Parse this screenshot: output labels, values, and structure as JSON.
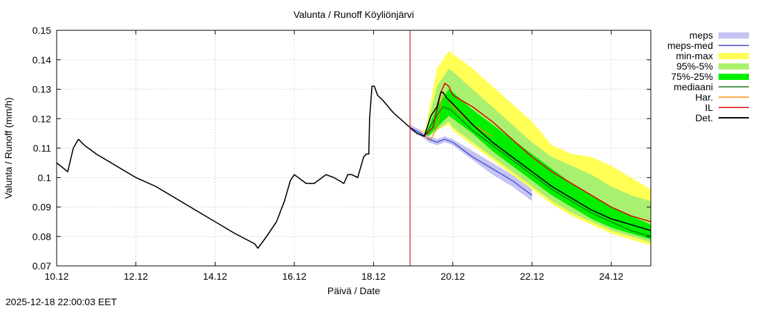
{
  "chart_data": {
    "type": "line",
    "title": "Valunta / Runoff  Köyliönjärvi",
    "xlabel": "Päivä / Date",
    "ylabel": "Valunta / Runoff (mm/h)",
    "x_unit": "days since 10.12 00:00",
    "xlim": [
      0,
      15
    ],
    "ylim": [
      0.07,
      0.15
    ],
    "x_ticks": [
      {
        "x": 0,
        "label": "10.12"
      },
      {
        "x": 2,
        "label": "12.12"
      },
      {
        "x": 4,
        "label": "14.12"
      },
      {
        "x": 6,
        "label": "16.12"
      },
      {
        "x": 8,
        "label": "18.12"
      },
      {
        "x": 10,
        "label": "20.12"
      },
      {
        "x": 12,
        "label": "22.12"
      },
      {
        "x": 14,
        "label": "24.12"
      }
    ],
    "y_ticks": [
      {
        "y": 0.07,
        "label": "0.07"
      },
      {
        "y": 0.08,
        "label": "0.08"
      },
      {
        "y": 0.09,
        "label": "0.09"
      },
      {
        "y": 0.1,
        "label": "0.1"
      },
      {
        "y": 0.11,
        "label": "0.11"
      },
      {
        "y": 0.12,
        "label": "0.12"
      },
      {
        "y": 0.13,
        "label": "0.13"
      },
      {
        "y": 0.14,
        "label": "0.14"
      },
      {
        "y": 0.15,
        "label": "0.15"
      }
    ],
    "grid": true,
    "forecast_start_x": 8.92,
    "legend_position": "right, outside plot",
    "colors": {
      "meps": "#c4c4f4",
      "meps_med": "#4444cc",
      "min_max": "#ffff55",
      "p95_5": "#aaf070",
      "p75_25": "#00ee00",
      "mediaani": "#117711",
      "har": "#ff8800",
      "il": "#dd0000",
      "det": "#000000",
      "now_line": "#cc0000",
      "grid": "#b4b4b4"
    },
    "legend": [
      {
        "key": "meps",
        "label": "meps",
        "style": "band"
      },
      {
        "key": "meps_med",
        "label": "meps-med",
        "style": "line"
      },
      {
        "key": "min_max",
        "label": "min-max",
        "style": "band"
      },
      {
        "key": "p95_5",
        "label": "95%-5%",
        "style": "band"
      },
      {
        "key": "p75_25",
        "label": "75%-25%",
        "style": "band"
      },
      {
        "key": "mediaani",
        "label": "mediaani",
        "style": "line"
      },
      {
        "key": "har",
        "label": "Har.",
        "style": "line"
      },
      {
        "key": "il",
        "label": "IL",
        "style": "line"
      },
      {
        "key": "det",
        "label": "Det.",
        "style": "line"
      }
    ],
    "series": {
      "det": {
        "x": [
          0,
          0.28,
          0.42,
          0.55,
          0.7,
          1.0,
          1.5,
          2.0,
          2.5,
          3.0,
          3.5,
          4.0,
          4.5,
          5.0,
          5.08,
          5.3,
          5.55,
          5.75,
          5.9,
          6.0,
          6.1,
          6.3,
          6.5,
          6.8,
          7.0,
          7.25,
          7.35,
          7.45,
          7.6,
          7.75,
          7.82,
          7.88,
          7.9,
          7.96,
          8.02,
          8.1,
          8.25,
          8.5,
          8.92,
          9.1,
          9.28,
          9.45,
          9.6,
          9.7,
          9.75,
          9.85,
          10.0,
          10.5,
          11.0,
          11.5,
          12.0,
          12.5,
          13.0,
          13.5,
          14.0,
          14.5,
          15.0
        ],
        "y": [
          0.105,
          0.102,
          0.11,
          0.113,
          0.111,
          0.108,
          0.104,
          0.1,
          0.097,
          0.093,
          0.089,
          0.085,
          0.081,
          0.0775,
          0.076,
          0.08,
          0.085,
          0.092,
          0.099,
          0.101,
          0.1,
          0.098,
          0.098,
          0.101,
          0.1,
          0.098,
          0.101,
          0.101,
          0.1,
          0.107,
          0.108,
          0.108,
          0.12,
          0.131,
          0.131,
          0.128,
          0.126,
          0.122,
          0.117,
          0.115,
          0.114,
          0.121,
          0.124,
          0.129,
          0.129,
          0.127,
          0.125,
          0.118,
          0.112,
          0.107,
          0.102,
          0.097,
          0.093,
          0.089,
          0.086,
          0.084,
          0.082
        ]
      },
      "mediaani": {
        "x": [
          9.28,
          9.5,
          9.75,
          9.95,
          10.5,
          11.0,
          11.5,
          12.0,
          12.5,
          13.0,
          13.5,
          14.0,
          14.5,
          15.0
        ],
        "y": [
          0.114,
          0.119,
          0.124,
          0.123,
          0.116,
          0.111,
          0.106,
          0.101,
          0.096,
          0.092,
          0.088,
          0.085,
          0.082,
          0.08
        ]
      },
      "il": {
        "x": [
          9.28,
          9.5,
          9.7,
          9.8,
          9.9,
          10.0,
          10.5,
          11.0,
          11.5,
          12.0,
          12.5,
          13.0,
          13.5,
          14.0,
          14.5,
          15.0
        ],
        "y": [
          0.114,
          0.117,
          0.129,
          0.132,
          0.131,
          0.128,
          0.124,
          0.119,
          0.113,
          0.107,
          0.102,
          0.098,
          0.094,
          0.09,
          0.087,
          0.085
        ]
      },
      "har": {
        "x": [
          9.28,
          9.45,
          9.6,
          9.7,
          9.75,
          9.8,
          10.0,
          10.5,
          11.0
        ],
        "y": [
          0.114,
          0.113,
          0.117,
          0.124,
          0.129,
          0.128,
          0.124,
          0.118,
          0.114
        ]
      },
      "meps_med": {
        "x": [
          8.92,
          9.2,
          9.4,
          9.6,
          9.8,
          10.0,
          10.5,
          11.0,
          11.5,
          12.0
        ],
        "y": [
          0.117,
          0.115,
          0.113,
          0.112,
          0.113,
          0.112,
          0.107,
          0.103,
          0.099,
          0.094
        ]
      }
    },
    "bands": {
      "min_max": {
        "x": [
          8.92,
          9.3,
          9.6,
          9.9,
          10.0,
          10.5,
          11.0,
          11.5,
          12.0,
          12.5,
          13.0,
          13.5,
          14.0,
          14.5,
          15.0
        ],
        "upper": [
          0.117,
          0.116,
          0.137,
          0.143,
          0.142,
          0.137,
          0.131,
          0.125,
          0.119,
          0.111,
          0.108,
          0.107,
          0.104,
          0.1,
          0.096
        ],
        "lower": [
          0.117,
          0.113,
          0.116,
          0.118,
          0.116,
          0.111,
          0.106,
          0.101,
          0.096,
          0.091,
          0.087,
          0.084,
          0.081,
          0.079,
          0.077
        ]
      },
      "p95_5": {
        "x": [
          8.92,
          9.3,
          9.6,
          9.9,
          10.0,
          10.5,
          11.0,
          11.5,
          12.0,
          12.5,
          13.0,
          13.5,
          14.0,
          14.5,
          15.0
        ],
        "upper": [
          0.117,
          0.115,
          0.131,
          0.137,
          0.136,
          0.13,
          0.124,
          0.118,
          0.112,
          0.107,
          0.104,
          0.101,
          0.097,
          0.094,
          0.092
        ],
        "lower": [
          0.117,
          0.113,
          0.116,
          0.119,
          0.117,
          0.112,
          0.107,
          0.102,
          0.097,
          0.092,
          0.088,
          0.085,
          0.082,
          0.08,
          0.078
        ]
      },
      "p75_25": {
        "x": [
          8.92,
          9.3,
          9.6,
          9.9,
          10.0,
          10.5,
          11.0,
          11.5,
          12.0,
          12.5,
          13.0,
          13.5,
          14.0,
          14.5,
          15.0
        ],
        "upper": [
          0.117,
          0.114,
          0.124,
          0.13,
          0.129,
          0.123,
          0.118,
          0.113,
          0.108,
          0.103,
          0.098,
          0.094,
          0.09,
          0.087,
          0.084
        ],
        "lower": [
          0.117,
          0.113,
          0.117,
          0.121,
          0.12,
          0.115,
          0.109,
          0.104,
          0.099,
          0.094,
          0.09,
          0.086,
          0.083,
          0.081,
          0.079
        ]
      },
      "meps": {
        "x": [
          8.92,
          9.2,
          9.4,
          9.6,
          9.8,
          10.0,
          10.5,
          11.0,
          11.5,
          12.0
        ],
        "upper": [
          0.118,
          0.116,
          0.114,
          0.113,
          0.114,
          0.113,
          0.109,
          0.105,
          0.101,
          0.096
        ],
        "lower": [
          0.116,
          0.114,
          0.112,
          0.111,
          0.112,
          0.111,
          0.106,
          0.101,
          0.097,
          0.092
        ]
      }
    }
  },
  "timestamp": "2025-12-18 22:00:03 EET"
}
